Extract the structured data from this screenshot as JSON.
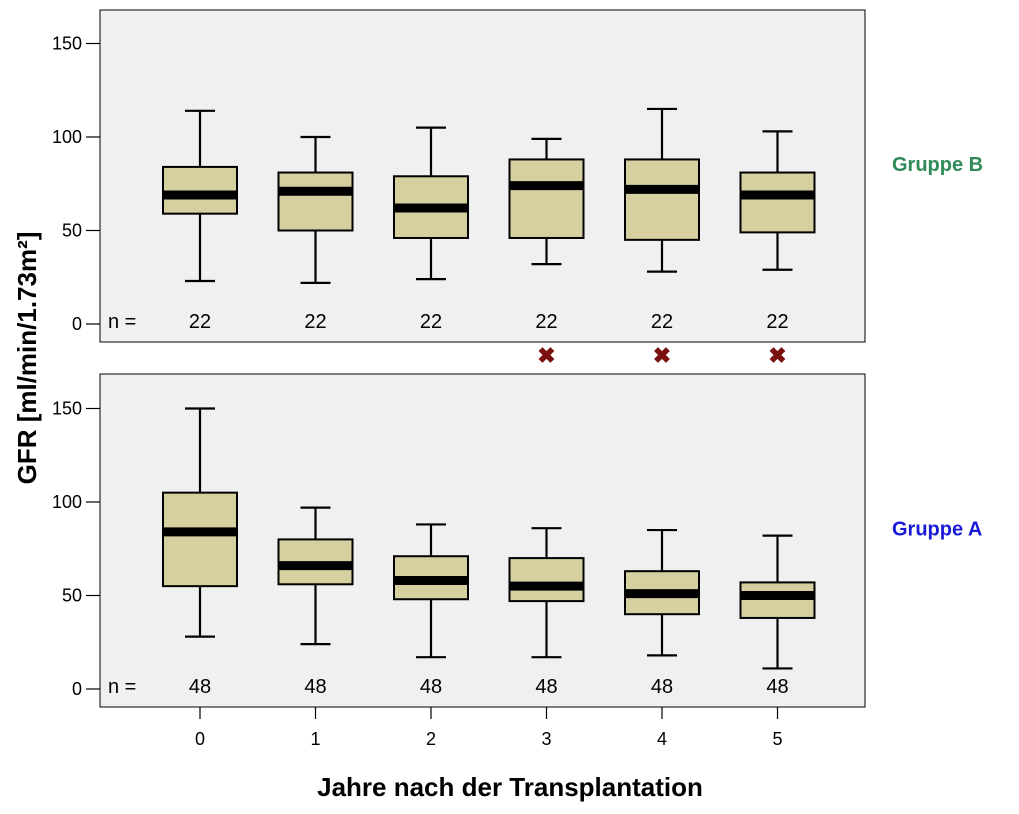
{
  "chart_data": {
    "type": "boxplot",
    "xlabel": "Jahre nach der Transplantation",
    "ylabel": "GFR [ml/min/1.73m²]",
    "categories": [
      "0",
      "1",
      "2",
      "3",
      "4",
      "5"
    ],
    "ylim": [
      0,
      160
    ],
    "yticks": [
      0,
      50,
      100,
      150
    ],
    "n_prefix": "n =",
    "colors": {
      "box_fill": "#d6cf9f",
      "panel_bg": "#f0f0f0",
      "median": "#000000",
      "marker": "#7a1010"
    },
    "panels": [
      {
        "group_label": "Gruppe B",
        "label_color": "#2e8b57",
        "n": [
          "22",
          "22",
          "22",
          "22",
          "22",
          "22"
        ],
        "boxes": [
          {
            "min": 23,
            "q1": 59,
            "median": 69,
            "q3": 84,
            "max": 114
          },
          {
            "min": 22,
            "q1": 50,
            "median": 71,
            "q3": 81,
            "max": 100
          },
          {
            "min": 24,
            "q1": 46,
            "median": 62,
            "q3": 79,
            "max": 105
          },
          {
            "min": 32,
            "q1": 46,
            "median": 74,
            "q3": 88,
            "max": 99
          },
          {
            "min": 28,
            "q1": 45,
            "median": 72,
            "q3": 88,
            "max": 115
          },
          {
            "min": 29,
            "q1": 49,
            "median": 69,
            "q3": 81,
            "max": 103
          }
        ]
      },
      {
        "group_label": "Gruppe A",
        "label_color": "#1a1ad6",
        "n": [
          "48",
          "48",
          "48",
          "48",
          "48",
          "48"
        ],
        "boxes": [
          {
            "min": 28,
            "q1": 55,
            "median": 84,
            "q3": 105,
            "max": 150
          },
          {
            "min": 24,
            "q1": 56,
            "median": 66,
            "q3": 80,
            "max": 97
          },
          {
            "min": 17,
            "q1": 48,
            "median": 58,
            "q3": 71,
            "max": 88
          },
          {
            "min": 17,
            "q1": 47,
            "median": 55,
            "q3": 70,
            "max": 86
          },
          {
            "min": 18,
            "q1": 40,
            "median": 51,
            "q3": 63,
            "max": 85
          },
          {
            "min": 11,
            "q1": 38,
            "median": 50,
            "q3": 57,
            "max": 82
          }
        ]
      }
    ],
    "significance_markers": {
      "symbol": "✖",
      "categories": [
        "3",
        "4",
        "5"
      ]
    }
  }
}
